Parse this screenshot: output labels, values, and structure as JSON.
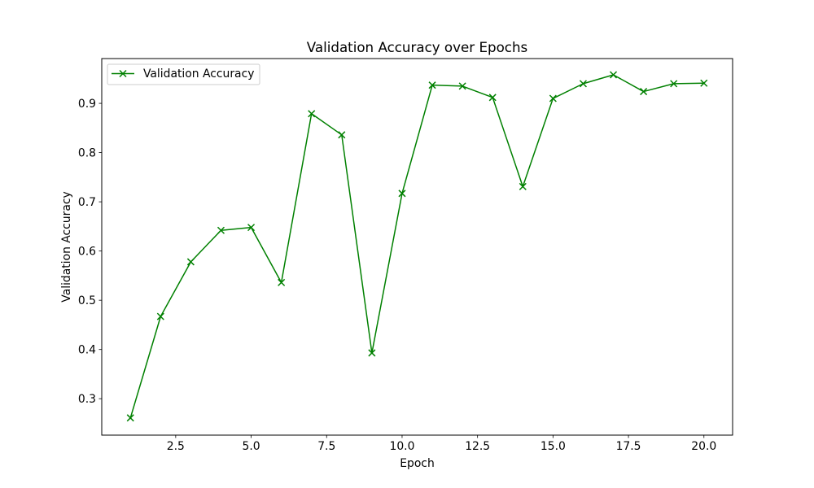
{
  "chart_data": {
    "type": "line",
    "title": "Validation Accuracy over Epochs",
    "xlabel": "Epoch",
    "ylabel": "Validation Accuracy",
    "xlim": [
      0.05,
      20.95
    ],
    "ylim": [
      0.226,
      0.991
    ],
    "xticks": [
      2.5,
      5.0,
      7.5,
      10.0,
      12.5,
      15.0,
      17.5,
      20.0
    ],
    "xtick_labels": [
      "2.5",
      "5.0",
      "7.5",
      "10.0",
      "12.5",
      "15.0",
      "17.5",
      "20.0"
    ],
    "yticks": [
      0.3,
      0.4,
      0.5,
      0.6,
      0.7,
      0.8,
      0.9
    ],
    "ytick_labels": [
      "0.3",
      "0.4",
      "0.5",
      "0.6",
      "0.7",
      "0.8",
      "0.9"
    ],
    "grid": false,
    "legend_position": "top-left",
    "series": [
      {
        "name": "Validation Accuracy",
        "color": "#008000",
        "marker": "x",
        "x": [
          1,
          2,
          3,
          4,
          5,
          6,
          7,
          8,
          9,
          10,
          11,
          12,
          13,
          14,
          15,
          16,
          17,
          18,
          19,
          20
        ],
        "y": [
          0.261,
          0.467,
          0.578,
          0.642,
          0.648,
          0.536,
          0.879,
          0.836,
          0.393,
          0.717,
          0.937,
          0.935,
          0.912,
          0.731,
          0.91,
          0.94,
          0.958,
          0.924,
          0.94,
          0.941
        ]
      }
    ]
  }
}
